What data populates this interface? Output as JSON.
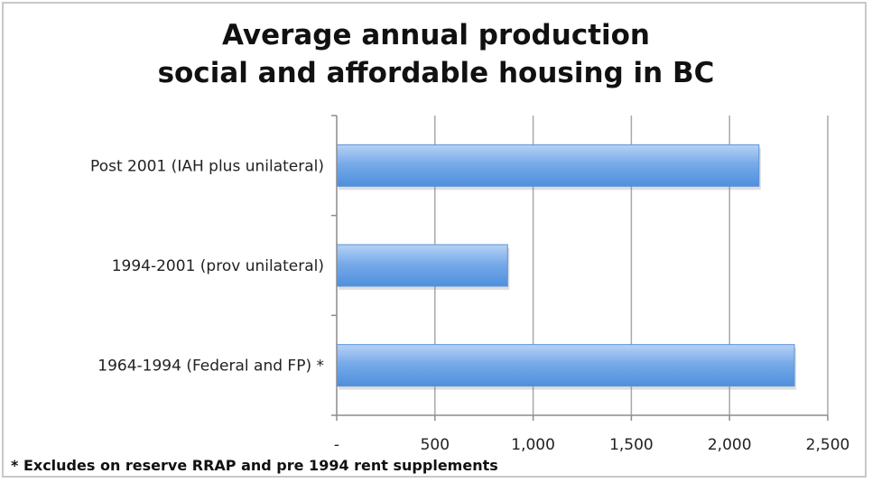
{
  "chart_data": {
    "type": "bar",
    "orientation": "horizontal",
    "title_lines": [
      "Average annual production",
      "social and affordable housing in BC"
    ],
    "categories": [
      "Post 2001 (IAH plus unilateral)",
      "1994-2001 (prov unilateral)",
      "1964-1994 (Federal and FP) *"
    ],
    "values": [
      2150,
      870,
      2330
    ],
    "xlim": [
      0,
      2500
    ],
    "x_ticks": [
      0,
      500,
      1000,
      1500,
      2000,
      2500
    ],
    "x_tick_labels": [
      "-",
      "500",
      "1,000",
      "1,500",
      "2,000",
      "2,500"
    ],
    "grid": "vertical",
    "bar_color": "#6fa5e6",
    "footnote": "* Excludes on reserve RRAP and pre 1994 rent supplements"
  }
}
